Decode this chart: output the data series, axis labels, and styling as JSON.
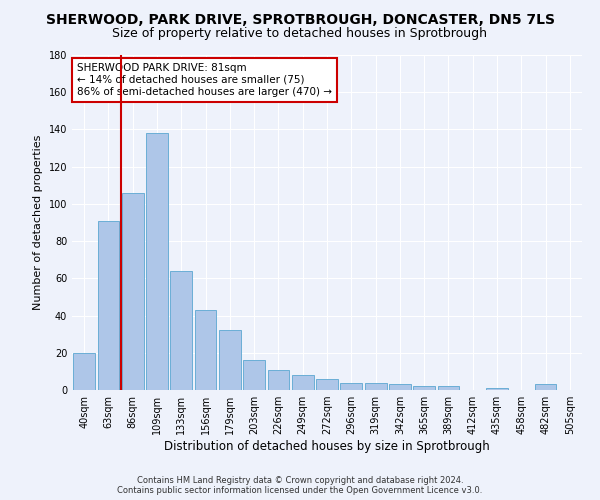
{
  "title": "SHERWOOD, PARK DRIVE, SPROTBROUGH, DONCASTER, DN5 7LS",
  "subtitle": "Size of property relative to detached houses in Sprotbrough",
  "xlabel": "Distribution of detached houses by size in Sprotbrough",
  "ylabel": "Number of detached properties",
  "bar_color": "#aec6e8",
  "bar_edge_color": "#6aaed6",
  "background_color": "#eef2fb",
  "grid_color": "#ffffff",
  "categories": [
    "40sqm",
    "63sqm",
    "86sqm",
    "109sqm",
    "133sqm",
    "156sqm",
    "179sqm",
    "203sqm",
    "226sqm",
    "249sqm",
    "272sqm",
    "296sqm",
    "319sqm",
    "342sqm",
    "365sqm",
    "389sqm",
    "412sqm",
    "435sqm",
    "458sqm",
    "482sqm",
    "505sqm"
  ],
  "values": [
    20,
    91,
    106,
    138,
    64,
    43,
    32,
    16,
    11,
    8,
    6,
    4,
    4,
    3,
    2,
    2,
    0,
    1,
    0,
    3,
    0
  ],
  "ylim": [
    0,
    180
  ],
  "yticks": [
    0,
    20,
    40,
    60,
    80,
    100,
    120,
    140,
    160,
    180
  ],
  "vline_x": 1.5,
  "vline_color": "#cc0000",
  "annotation_text": "SHERWOOD PARK DRIVE: 81sqm\n← 14% of detached houses are smaller (75)\n86% of semi-detached houses are larger (470) →",
  "footer_line1": "Contains HM Land Registry data © Crown copyright and database right 2024.",
  "footer_line2": "Contains public sector information licensed under the Open Government Licence v3.0.",
  "title_fontsize": 10,
  "subtitle_fontsize": 9,
  "tick_fontsize": 7,
  "ylabel_fontsize": 8,
  "xlabel_fontsize": 8.5,
  "annotation_fontsize": 7.5,
  "footer_fontsize": 6
}
